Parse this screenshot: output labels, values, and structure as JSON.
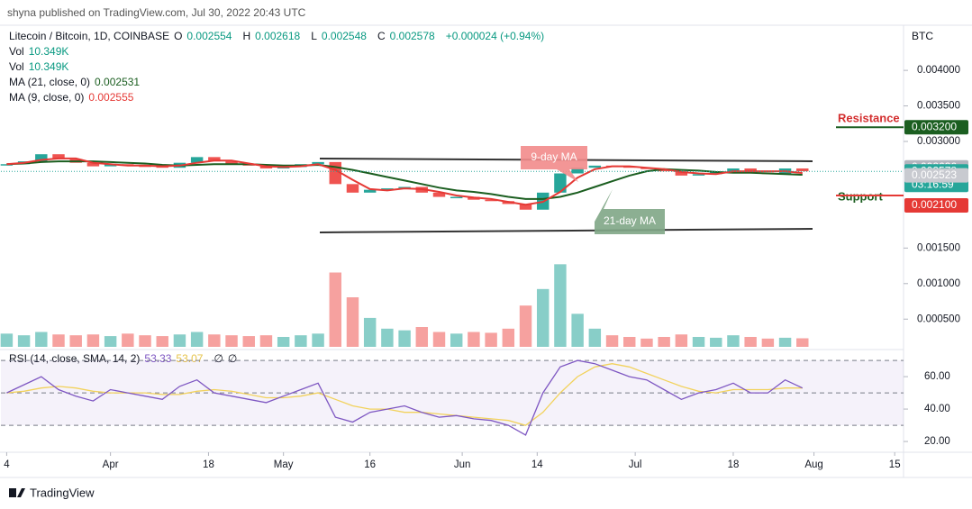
{
  "header": "shyna published on TradingView.com, Jul 30, 2022 20:43 UTC",
  "footer": "TradingView",
  "chart_data": {
    "type": "candlestick",
    "currency": "BTC",
    "legend": [
      [
        {
          "text": "Litecoin / Bitcoin, 1D, COINBASE",
          "color": "#131722"
        },
        {
          "text": "O",
          "color": "#131722"
        },
        {
          "text": "0.002554",
          "color": "#089981"
        },
        {
          "text": "H",
          "color": "#131722"
        },
        {
          "text": "0.002618",
          "color": "#089981"
        },
        {
          "text": "L",
          "color": "#131722"
        },
        {
          "text": "0.002548",
          "color": "#089981"
        },
        {
          "text": "C",
          "color": "#131722"
        },
        {
          "text": "0.002578",
          "color": "#089981"
        },
        {
          "text": "+0.000024 (+0.94%)",
          "color": "#089981"
        }
      ],
      [
        {
          "text": "Vol",
          "color": "#131722"
        },
        {
          "text": "10.349K",
          "color": "#089981"
        }
      ],
      [
        {
          "text": "Vol",
          "color": "#131722"
        },
        {
          "text": "10.349K",
          "color": "#089981"
        }
      ],
      [
        {
          "text": "MA (21, close, 0)",
          "color": "#131722"
        },
        {
          "text": "0.002531",
          "color": "#1b5e20"
        }
      ],
      [
        {
          "text": "MA (9, close, 0)",
          "color": "#131722"
        },
        {
          "text": "0.002555",
          "color": "#e53935"
        }
      ]
    ],
    "x": [
      "2022-03-14",
      "2022-03-17",
      "2022-03-20",
      "2022-03-23",
      "2022-03-26",
      "2022-03-29",
      "2022-04-01",
      "2022-04-04",
      "2022-04-07",
      "2022-04-10",
      "2022-04-13",
      "2022-04-16",
      "2022-04-19",
      "2022-04-22",
      "2022-04-25",
      "2022-04-28",
      "2022-05-01",
      "2022-05-04",
      "2022-05-07",
      "2022-05-10",
      "2022-05-13",
      "2022-05-16",
      "2022-05-19",
      "2022-05-22",
      "2022-05-25",
      "2022-05-28",
      "2022-05-31",
      "2022-06-03",
      "2022-06-06",
      "2022-06-09",
      "2022-06-12",
      "2022-06-15",
      "2022-06-18",
      "2022-06-21",
      "2022-06-24",
      "2022-06-27",
      "2022-06-30",
      "2022-07-03",
      "2022-07-06",
      "2022-07-09",
      "2022-07-12",
      "2022-07-15",
      "2022-07-18",
      "2022-07-21",
      "2022-07-24",
      "2022-07-27",
      "2022-07-30"
    ],
    "close": [
      0.00268,
      0.00272,
      0.00282,
      0.00275,
      0.0027,
      0.00265,
      0.00268,
      0.00266,
      0.00265,
      0.00263,
      0.0027,
      0.00278,
      0.00272,
      0.00268,
      0.00266,
      0.00262,
      0.00264,
      0.00268,
      0.00271,
      0.0024,
      0.00228,
      0.00232,
      0.00234,
      0.00236,
      0.00228,
      0.00222,
      0.00222,
      0.00218,
      0.00216,
      0.00212,
      0.00204,
      0.00228,
      0.00255,
      0.00263,
      0.00266,
      0.00265,
      0.00263,
      0.00262,
      0.00258,
      0.00252,
      0.00254,
      0.00257,
      0.00262,
      0.00256,
      0.00255,
      0.00262,
      0.00258
    ],
    "ma_series": [
      {
        "color": "#1b5e20",
        "values": [
          0.00268,
          0.00269,
          0.00271,
          0.00272,
          0.00272,
          0.00272,
          0.00271,
          0.0027,
          0.00269,
          0.00267,
          0.00266,
          0.00267,
          0.00268,
          0.00268,
          0.00268,
          0.00267,
          0.00266,
          0.00266,
          0.00267,
          0.00264,
          0.0026,
          0.00255,
          0.0025,
          0.00245,
          0.0024,
          0.00235,
          0.00231,
          0.00229,
          0.00226,
          0.00222,
          0.00219,
          0.00219,
          0.00222,
          0.00228,
          0.00236,
          0.00244,
          0.00252,
          0.00258,
          0.00261,
          0.0026,
          0.00259,
          0.00257,
          0.00256,
          0.00256,
          0.00255,
          0.00254,
          0.002531
        ]
      },
      {
        "color": "#e53935",
        "values": [
          0.00268,
          0.0027,
          0.00274,
          0.00276,
          0.00276,
          0.0027,
          0.00268,
          0.00266,
          0.00266,
          0.00265,
          0.00266,
          0.0027,
          0.00273,
          0.00273,
          0.00269,
          0.00265,
          0.00264,
          0.00265,
          0.00268,
          0.0026,
          0.00246,
          0.00233,
          0.00231,
          0.00234,
          0.00233,
          0.00229,
          0.00224,
          0.00221,
          0.00219,
          0.00215,
          0.00211,
          0.00215,
          0.00229,
          0.00249,
          0.00261,
          0.00265,
          0.00265,
          0.00263,
          0.00261,
          0.00257,
          0.00255,
          0.00254,
          0.00258,
          0.00258,
          0.00258,
          0.00258,
          0.002555
        ]
      }
    ],
    "up_color": "#26a69a",
    "down_color": "#ef5350",
    "volume": [
      16,
      14,
      18,
      15,
      14,
      15,
      13,
      16,
      14,
      13,
      15,
      18,
      15,
      14,
      13,
      14,
      12,
      14,
      16,
      90,
      60,
      35,
      22,
      20,
      24,
      18,
      16,
      18,
      17,
      22,
      50,
      70,
      100,
      40,
      22,
      14,
      12,
      10,
      12,
      15,
      12,
      11,
      14,
      12,
      10,
      11,
      10.349
    ],
    "volume_lim": [
      0,
      120
    ],
    "xlim": [
      "2022-03-13",
      "2022-08-17"
    ],
    "xticks": [
      {
        "value": "2022-03-14",
        "label": "4"
      },
      {
        "value": "2022-04-01",
        "label": "Apr"
      },
      {
        "value": "2022-04-18",
        "label": "18"
      },
      {
        "value": "2022-05-01",
        "label": "May"
      },
      {
        "value": "2022-05-16",
        "label": "16"
      },
      {
        "value": "2022-06-01",
        "label": "Jun"
      },
      {
        "value": "2022-06-14",
        "label": "14"
      },
      {
        "value": "2022-07-01",
        "label": "Jul"
      },
      {
        "value": "2022-07-18",
        "label": "18"
      },
      {
        "value": "2022-08-01",
        "label": "Aug"
      },
      {
        "value": "2022-08-15",
        "label": "15"
      }
    ],
    "ylim": [
      0.00011,
      0.00461
    ],
    "yticks": [
      {
        "value": 0.004,
        "label": "0.004000"
      },
      {
        "value": 0.0035,
        "label": "0.003500"
      },
      {
        "value": 0.003,
        "label": "0.003000"
      },
      {
        "value": 0.0015,
        "label": "0.001500"
      },
      {
        "value": 0.001,
        "label": "0.001000"
      },
      {
        "value": 0.0005,
        "label": "0.000500"
      }
    ],
    "price_labels": [
      {
        "value": 0.0032,
        "label": "0.003200",
        "color": "#1b5e20"
      },
      {
        "value": 0.002636,
        "label": "0.002636",
        "color": "#b2b5be"
      },
      {
        "value": 0.002578,
        "label": "0.002578",
        "color": "#26a69a",
        "countdown": "03:16:59"
      },
      {
        "value": 0.002523,
        "label": "0.002523",
        "color": "#c8cad0"
      },
      {
        "value": 0.0021,
        "label": "0.002100",
        "color": "#e53935"
      }
    ],
    "annotations": {
      "resistance": "Resistance",
      "support": "Support",
      "ma9": "9-day MA",
      "ma21": "21-day MA"
    },
    "rsi": {
      "legend": [
        {
          "text": "RSI (14, close, SMA, 14, 2)",
          "color": "#131722"
        },
        {
          "text": "53.33",
          "color": "#7e57c2"
        },
        {
          "text": "53.07",
          "color": "#e6c34a"
        },
        {
          "text": "∅",
          "color": "#131722"
        },
        {
          "text": "∅",
          "color": "#131722"
        }
      ],
      "values": [
        50,
        55,
        60,
        52,
        48,
        45,
        52,
        50,
        48,
        46,
        54,
        58,
        50,
        48,
        46,
        44,
        48,
        52,
        56,
        35,
        32,
        38,
        40,
        42,
        38,
        35,
        36,
        34,
        33,
        30,
        24,
        50,
        66,
        70,
        68,
        64,
        60,
        58,
        52,
        46,
        50,
        52,
        56,
        50,
        50,
        58,
        53
      ],
      "sma": [
        50,
        51,
        53,
        54,
        53,
        51,
        50,
        50,
        50,
        49,
        49,
        51,
        52,
        51,
        49,
        47,
        47,
        48,
        50,
        46,
        42,
        40,
        40,
        38,
        38,
        37,
        36,
        35,
        34,
        33,
        30,
        38,
        50,
        60,
        66,
        68,
        66,
        62,
        58,
        54,
        51,
        50,
        52,
        52,
        52,
        53,
        53
      ],
      "color": "#7e57c2",
      "sma_color": "#f2d25c",
      "ylim": [
        11.7,
        75.6
      ],
      "yticks": [
        {
          "value": 60,
          "label": "60.00"
        },
        {
          "value": 40,
          "label": "40.00"
        },
        {
          "value": 20,
          "label": "20.00"
        }
      ],
      "levels": [
        70,
        50,
        30
      ]
    }
  }
}
